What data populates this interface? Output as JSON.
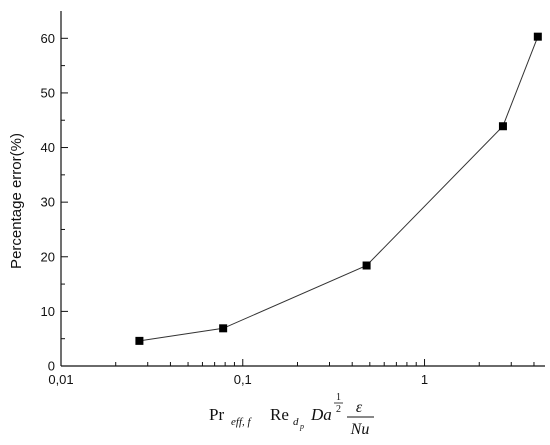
{
  "chart_data": {
    "type": "line",
    "x_scale": "log",
    "xlim": [
      0.01,
      4.6
    ],
    "ylim": [
      0,
      65
    ],
    "ylabel": "Percentage error(%)",
    "xlabel_parts": {
      "pr": "Pr",
      "pr_sub": "eff, f",
      "re": "Re",
      "re_sub": "d",
      "re_subsub": "p",
      "da": "Da",
      "da_exp_num": "1",
      "da_exp_den": "2",
      "frac_num": "ε",
      "frac_den": "Nu"
    },
    "x_ticks": [
      {
        "value": 0.01,
        "label": "0,01"
      },
      {
        "value": 0.1,
        "label": "0,1"
      },
      {
        "value": 1,
        "label": "1"
      }
    ],
    "y_ticks": [
      {
        "value": 0,
        "label": "0"
      },
      {
        "value": 10,
        "label": "10"
      },
      {
        "value": 20,
        "label": "20"
      },
      {
        "value": 30,
        "label": "30"
      },
      {
        "value": 40,
        "label": "40"
      },
      {
        "value": 50,
        "label": "50"
      },
      {
        "value": 60,
        "label": "60"
      }
    ],
    "series": [
      {
        "x": [
          0.027,
          0.078,
          0.48,
          2.7,
          4.2
        ],
        "y": [
          4.6,
          6.9,
          18.4,
          43.9,
          60.3
        ]
      }
    ],
    "grid": false,
    "legend": "none",
    "marker": "square",
    "line_color": "#333333",
    "marker_color": "#000000"
  }
}
